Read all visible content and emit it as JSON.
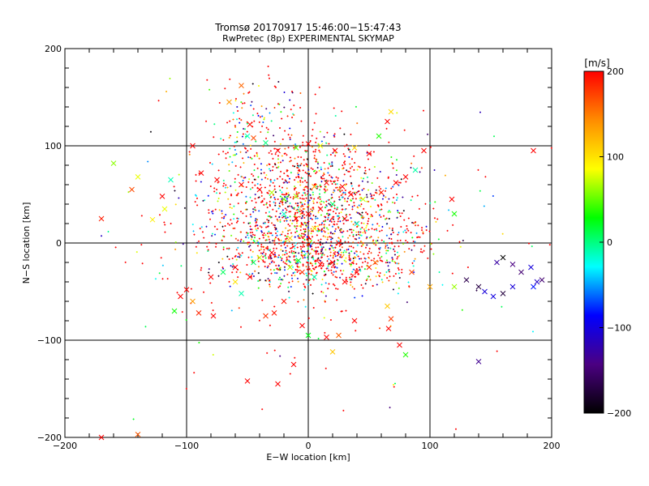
{
  "chart_data": {
    "type": "scatter",
    "title": "Tromsø 20170917 15:46:00−15:47:43",
    "subtitle": "RwPretec (8p) EXPERIMENTAL SKYMAP",
    "xlabel": "E−W location [km]",
    "ylabel": "N−S location [km]",
    "xlim": [
      -200,
      200
    ],
    "ylim": [
      -200,
      200
    ],
    "x_ticks": [
      -200,
      -100,
      0,
      100,
      200
    ],
    "y_ticks": [
      -200,
      -100,
      0,
      100,
      200
    ],
    "x_tick_labels": [
      "−200",
      "−100",
      "0",
      "100",
      "200"
    ],
    "y_tick_labels": [
      "−200",
      "−100",
      "0",
      "100",
      "200"
    ],
    "grid": true,
    "colorbar": {
      "label": "[m/s]",
      "range": [
        -200,
        200
      ],
      "ticks": [
        200,
        100,
        0,
        -100,
        -200
      ],
      "tick_labels": [
        "200",
        "100",
        "0",
        "−100",
        "−200"
      ],
      "colors": [
        "#000000",
        "#4b0082",
        "#0000ff",
        "#00ffff",
        "#00ff00",
        "#ffff00",
        "#ff8c00",
        "#ff0000"
      ]
    },
    "series": [
      {
        "marker": "x",
        "points": [
          [
            -160,
            82
          ],
          [
            -113,
            65
          ],
          [
            -140,
            68
          ],
          [
            -120,
            48
          ],
          [
            -118,
            35
          ],
          [
            -145,
            55
          ],
          [
            -128,
            24
          ],
          [
            -170,
            25
          ],
          [
            -105,
            -55
          ],
          [
            -110,
            -70
          ],
          [
            -90,
            -72
          ],
          [
            -78,
            -75
          ],
          [
            -55,
            -52
          ],
          [
            -60,
            -40
          ],
          [
            -48,
            -35
          ],
          [
            -35,
            -75
          ],
          [
            -28,
            -72
          ],
          [
            -20,
            -60
          ],
          [
            -95,
            -60
          ],
          [
            -100,
            -48
          ],
          [
            -88,
            72
          ],
          [
            -75,
            65
          ],
          [
            -55,
            60
          ],
          [
            -40,
            55
          ],
          [
            -30,
            52
          ],
          [
            -20,
            45
          ],
          [
            -10,
            48
          ],
          [
            5,
            58
          ],
          [
            15,
            62
          ],
          [
            28,
            58
          ],
          [
            35,
            50
          ],
          [
            45,
            45
          ],
          [
            60,
            52
          ],
          [
            72,
            62
          ],
          [
            88,
            75
          ],
          [
            95,
            95
          ],
          [
            80,
            68
          ],
          [
            120,
            30
          ],
          [
            118,
            45
          ],
          [
            155,
            -20
          ],
          [
            160,
            -15
          ],
          [
            168,
            -22
          ],
          [
            175,
            -30
          ],
          [
            183,
            -25
          ],
          [
            185,
            -45
          ],
          [
            188,
            -40
          ],
          [
            192,
            -38
          ],
          [
            168,
            -45
          ],
          [
            160,
            -52
          ],
          [
            152,
            -55
          ],
          [
            145,
            -50
          ],
          [
            140,
            -45
          ],
          [
            130,
            -38
          ],
          [
            120,
            -45
          ],
          [
            100,
            -45
          ],
          [
            85,
            -30
          ],
          [
            -50,
            110
          ],
          [
            -45,
            108
          ],
          [
            -35,
            103
          ],
          [
            -25,
            95
          ],
          [
            -10,
            98
          ],
          [
            0,
            102
          ],
          [
            10,
            100
          ],
          [
            22,
            95
          ],
          [
            38,
            98
          ],
          [
            50,
            92
          ],
          [
            58,
            110
          ],
          [
            65,
            125
          ],
          [
            68,
            135
          ],
          [
            -55,
            162
          ],
          [
            -65,
            145
          ],
          [
            -48,
            122
          ],
          [
            -95,
            100
          ],
          [
            65,
            -65
          ],
          [
            68,
            -78
          ],
          [
            66,
            -88
          ],
          [
            80,
            -115
          ],
          [
            75,
            -105
          ],
          [
            20,
            -112
          ],
          [
            -12,
            -125
          ],
          [
            -25,
            -145
          ],
          [
            -50,
            -142
          ],
          [
            -140,
            -197
          ],
          [
            -170,
            -200
          ],
          [
            140,
            -122
          ],
          [
            185,
            95
          ],
          [
            0,
            -95
          ],
          [
            15,
            -97
          ],
          [
            25,
            -95
          ],
          [
            -5,
            -85
          ],
          [
            38,
            -80
          ],
          [
            30,
            -40
          ],
          [
            40,
            -30
          ],
          [
            50,
            -25
          ],
          [
            55,
            -20
          ],
          [
            -8,
            -18
          ],
          [
            -15,
            -25
          ],
          [
            -5,
            -30
          ],
          [
            5,
            -35
          ],
          [
            10,
            -22
          ],
          [
            20,
            -20
          ],
          [
            -30,
            -10
          ],
          [
            -40,
            -15
          ],
          [
            -45,
            -20
          ],
          [
            -60,
            -25
          ],
          [
            -70,
            -30
          ],
          [
            -80,
            -35
          ],
          [
            0,
            30
          ],
          [
            10,
            35
          ],
          [
            20,
            40
          ],
          [
            -10,
            25
          ],
          [
            -20,
            30
          ],
          [
            30,
            25
          ],
          [
            40,
            20
          ],
          [
            5,
            15
          ],
          [
            -15,
            5
          ],
          [
            25,
            0
          ]
        ]
      }
    ]
  }
}
